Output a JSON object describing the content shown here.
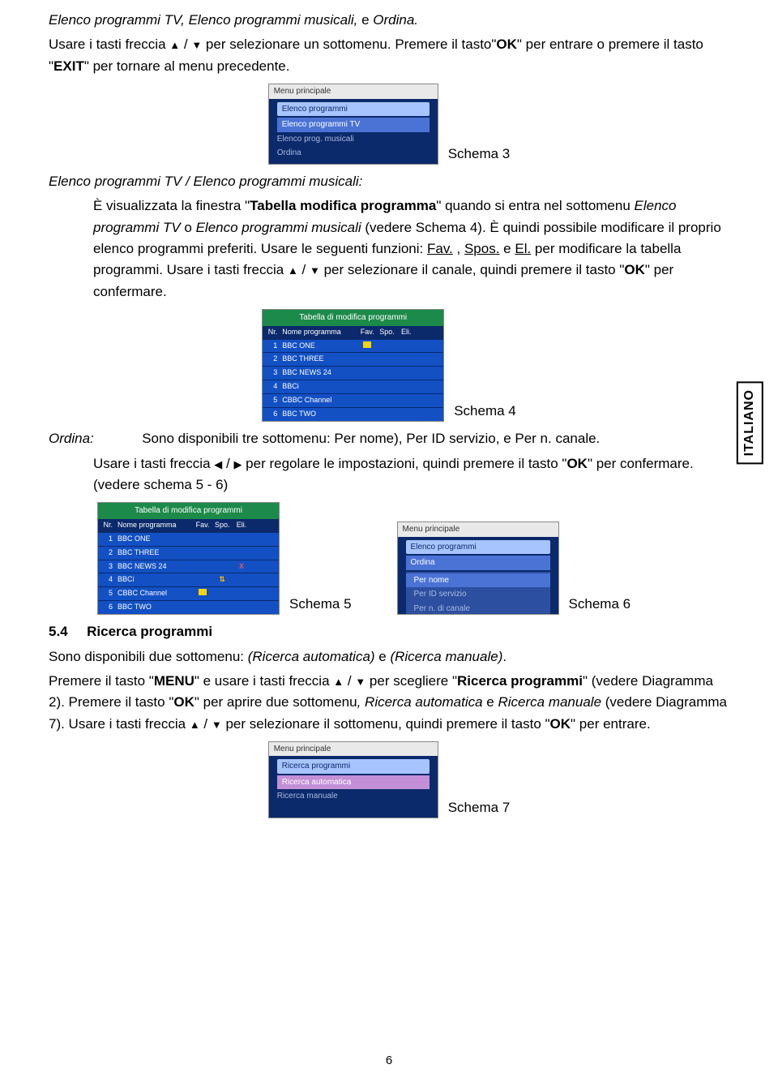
{
  "side_label": "ITALIANO",
  "page_number": "6",
  "intro": {
    "line1_a": "Elenco programmi TV, Elenco programmi musicali,",
    "line1_b": " e ",
    "line1_c": "Ordina.",
    "line2_a": "Usare i tasti freccia ",
    "line2_b": " / ",
    "line2_c": " per selezionare un sottomenu. Premere il tasto\"",
    "line2_ok": "OK",
    "line2_d": "\" per entrare o premere il tasto \"",
    "line2_exit": "EXIT",
    "line2_e": "\" per tornare al menu precedente."
  },
  "schema3": {
    "label": "Schema 3",
    "title": "Menu principale",
    "tab": "Elenco programmi",
    "sel": "Elenco programmi TV",
    "rows": [
      "Elenco prog. musicali",
      "Ordina"
    ]
  },
  "section_elenco": {
    "heading": "Elenco programmi TV / Elenco programmi musicali:",
    "p1_a": "È visualizzata la finestra \"",
    "p1_b": "Tabella modifica programma",
    "p1_c": "\" quando si entra nel sottomenu ",
    "p1_d": "Elenco programmi TV",
    "p1_e": " o ",
    "p1_f": "Elenco programmi musicali",
    "p1_g": " (vedere Schema 4). È quindi possibile modificare il proprio elenco programmi preferiti. Usare le seguenti funzioni: ",
    "fav": "Fav.",
    "comma": " , ",
    "spos": "Spos.",
    "e": " e ",
    "el": "El.",
    "p1_h": " per modificare la tabella programmi. Usare i tasti freccia ",
    "p1_i": " / ",
    "p1_j": " per selezionare il canale, quindi premere il tasto \"",
    "p1_ok": "OK",
    "p1_k": "\" per confermare."
  },
  "schema4": {
    "label": "Schema 4",
    "title": "Tabella di modifica programmi",
    "cols": [
      "Nr.",
      "Nome programma",
      "Fav.",
      "Spo.",
      "Eli."
    ],
    "rows": [
      {
        "n": "1",
        "name": "BBC ONE",
        "fav": true
      },
      {
        "n": "2",
        "name": "BBC THREE"
      },
      {
        "n": "3",
        "name": "BBC NEWS 24"
      },
      {
        "n": "4",
        "name": "BBCi"
      },
      {
        "n": "5",
        "name": "CBBC Channel"
      },
      {
        "n": "6",
        "name": "BBC TWO"
      }
    ]
  },
  "ordina": {
    "label": "Ordina:",
    "p1": "Sono disponibili tre sottomenu: Per nome), Per ID servizio, e Per n. canale.",
    "p2_a": "Usare i tasti freccia ",
    "p2_b": " / ",
    "p2_c": " per regolare le impostazioni, quindi premere il tasto \"",
    "p2_ok": "OK",
    "p2_d": "\" per confermare. (vedere schema 5 - 6)"
  },
  "schema5": {
    "label": "Schema 5",
    "title": "Tabella di modifica programmi",
    "cols": [
      "Nr.",
      "Nome programma",
      "Fav.",
      "Spo.",
      "Eli."
    ],
    "rows": [
      {
        "n": "1",
        "name": "BBC ONE"
      },
      {
        "n": "2",
        "name": "BBC THREE"
      },
      {
        "n": "3",
        "name": "BBC NEWS 24",
        "del": true
      },
      {
        "n": "4",
        "name": "BBCi",
        "arr": true
      },
      {
        "n": "5",
        "name": "CBBC Channel",
        "fav": true
      },
      {
        "n": "6",
        "name": "BBC TWO"
      }
    ]
  },
  "schema6": {
    "label": "Schema 6",
    "title": "Menu principale",
    "tab": "Elenco programmi",
    "sel": "Ordina",
    "rows": [
      "Per nome",
      "Per ID servizio",
      "Per n. di canale"
    ]
  },
  "ricerca": {
    "num": "5.4",
    "title": "Ricerca programmi",
    "p1_a": "Sono disponibili due sottomenu: ",
    "p1_b": "(Ricerca automatica)",
    "p1_c": " e ",
    "p1_d": "(Ricerca manuale)",
    "p1_e": ".",
    "p2_a": "Premere il tasto \"",
    "p2_menu": "MENU",
    "p2_b": "\" e usare i tasti freccia ",
    "p2_c": " / ",
    "p2_d": " per scegliere \"",
    "p2_rp": "Ricerca programmi",
    "p2_e": "\" (vedere Diagramma 2). Premere il tasto \"",
    "p2_ok": "OK",
    "p2_f": "\" per aprire due sottomenu",
    "p2_g": ", Ricerca automatica ",
    "p2_h": "e ",
    "p2_i": "Ricerca manuale",
    "p2_j": " (vedere Diagramma 7). Usare i tasti freccia ",
    "p2_k": " / ",
    "p2_l": " per selezionare il sottomenu, quindi premere il tasto \"",
    "p2_ok2": "OK",
    "p2_m": "\" per entrare."
  },
  "schema7": {
    "label": "Schema 7",
    "title": "Menu principale",
    "tab": "Ricerca programmi",
    "sel": "Ricerca automatica",
    "rows": [
      "Ricerca manuale"
    ]
  },
  "glyphs": {
    "up": "▲",
    "down": "▼",
    "left": "◀",
    "right": "▶"
  }
}
